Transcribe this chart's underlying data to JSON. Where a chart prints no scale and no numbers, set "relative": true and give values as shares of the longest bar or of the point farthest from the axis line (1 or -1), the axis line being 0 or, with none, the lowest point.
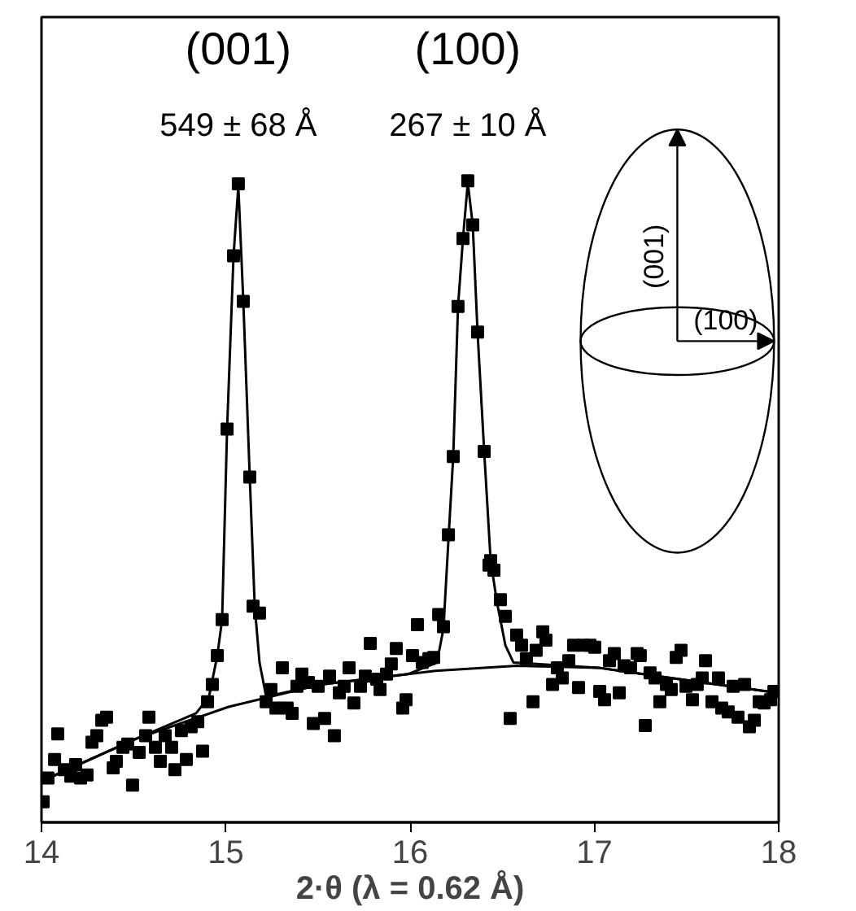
{
  "chart_data": {
    "type": "scatter",
    "relative": true,
    "xlabel": "2·θ (λ = 0.62 Å)",
    "xlim": [
      14,
      18
    ],
    "xticks": [
      14,
      15,
      16,
      17,
      18
    ],
    "grid": false,
    "annotations": [
      "(001)",
      "549 ± 68 Å",
      "(100)",
      "267 ± 10 Å",
      "(001)",
      "(100)"
    ],
    "series": [
      {
        "marker": "square",
        "color": "#000000",
        "x": [
          14.009,
          14.035,
          14.071,
          14.088,
          14.124,
          14.159,
          14.185,
          14.212,
          14.247,
          14.274,
          14.3,
          14.327,
          14.353,
          14.389,
          14.406,
          14.442,
          14.468,
          14.494,
          14.53,
          14.565,
          14.583,
          14.618,
          14.645,
          14.671,
          14.706,
          14.724,
          14.759,
          14.786,
          14.812,
          14.848,
          14.874,
          14.901,
          14.927,
          14.954,
          14.98,
          15.007,
          15.042,
          15.068,
          15.095,
          15.13,
          15.148,
          15.183,
          15.219,
          15.245,
          15.272,
          15.307,
          15.333,
          15.36,
          15.386,
          15.413,
          15.448,
          15.475,
          15.501,
          15.536,
          15.563,
          15.589,
          15.616,
          15.642,
          15.669,
          15.695,
          15.731,
          15.757,
          15.784,
          15.819,
          15.837,
          15.872,
          15.898,
          15.925,
          15.96,
          15.978,
          16.013,
          16.04,
          16.066,
          16.102,
          16.128,
          16.155,
          16.181,
          16.208,
          16.234,
          16.26,
          16.287,
          16.313,
          16.34,
          16.366,
          16.402,
          16.437,
          16.428,
          16.455,
          16.49,
          16.517,
          16.543,
          16.578,
          16.605,
          16.631,
          16.667,
          16.684,
          16.72,
          16.737,
          16.773,
          16.799,
          16.826,
          16.861,
          16.887,
          16.914,
          16.94,
          16.976,
          17.002,
          17.029,
          17.055,
          17.082,
          17.108,
          17.135,
          17.161,
          17.196,
          17.232,
          17.249,
          17.276,
          17.302,
          17.329,
          17.355,
          17.391,
          17.417,
          17.444,
          17.47,
          17.497,
          17.532,
          17.558,
          17.585,
          17.603,
          17.638,
          17.673,
          17.691,
          17.726,
          17.753,
          17.779,
          17.815,
          17.841,
          17.868,
          17.894,
          17.921,
          17.956,
          17.974
        ],
        "values": [
          0.032,
          0.069,
          0.098,
          0.138,
          0.082,
          0.072,
          0.09,
          0.069,
          0.074,
          0.125,
          0.135,
          0.159,
          0.164,
          0.085,
          0.095,
          0.117,
          0.122,
          0.058,
          0.109,
          0.135,
          0.164,
          0.117,
          0.095,
          0.135,
          0.117,
          0.082,
          0.143,
          0.098,
          0.149,
          0.157,
          0.111,
          0.188,
          0.215,
          0.26,
          0.316,
          0.613,
          0.883,
          0.995,
          0.812,
          0.538,
          0.337,
          0.326,
          0.188,
          0.207,
          0.178,
          0.241,
          0.178,
          0.17,
          0.212,
          0.231,
          0.218,
          0.154,
          0.212,
          0.162,
          0.228,
          0.135,
          0.202,
          0.212,
          0.241,
          0.186,
          0.212,
          0.228,
          0.279,
          0.223,
          0.207,
          0.231,
          0.247,
          0.271,
          0.178,
          0.191,
          0.26,
          0.308,
          0.249,
          0.255,
          0.257,
          0.324,
          0.305,
          0.448,
          0.57,
          0.804,
          0.91,
          1.0,
          0.931,
          0.764,
          0.578,
          0.408,
          0.401,
          0.393,
          0.347,
          0.321,
          0.162,
          0.292,
          0.276,
          0.255,
          0.188,
          0.268,
          0.297,
          0.284,
          0.215,
          0.241,
          0.225,
          0.252,
          0.276,
          0.21,
          0.276,
          0.276,
          0.273,
          0.204,
          0.191,
          0.252,
          0.263,
          0.202,
          0.244,
          0.241,
          0.263,
          0.26,
          0.151,
          0.233,
          0.225,
          0.188,
          0.215,
          0.207,
          0.257,
          0.268,
          0.212,
          0.191,
          0.215,
          0.225,
          0.252,
          0.188,
          0.225,
          0.178,
          0.172,
          0.212,
          0.164,
          0.215,
          0.149,
          0.159,
          0.188,
          0.186,
          0.191,
          0.204
        ]
      },
      {
        "type": "line",
        "marker": "none",
        "color": "#000000",
        "x": [
          14.0,
          14.512,
          15.015,
          15.519,
          16.137,
          16.578,
          17.02,
          17.461,
          17.991
        ],
        "values": [
          0.064,
          0.13,
          0.18,
          0.215,
          0.236,
          0.244,
          0.241,
          0.223,
          0.202
        ]
      },
      {
        "type": "line",
        "marker": "none",
        "color": "#000000",
        "x": [
          14.0,
          14.512,
          14.839,
          14.909,
          14.954,
          14.98,
          15.007,
          15.042,
          15.068,
          15.095,
          15.13,
          15.157,
          15.183,
          15.219,
          15.519,
          15.987,
          16.146,
          16.181,
          16.208,
          16.234,
          16.26,
          16.287,
          16.313,
          16.34,
          16.366,
          16.402,
          16.437,
          16.472,
          16.517,
          16.561,
          17.02,
          17.461,
          17.991
        ],
        "values": [
          0.064,
          0.13,
          0.17,
          0.196,
          0.26,
          0.316,
          0.613,
          0.883,
          0.992,
          0.812,
          0.538,
          0.337,
          0.249,
          0.196,
          0.215,
          0.231,
          0.249,
          0.302,
          0.44,
          0.57,
          0.804,
          0.91,
          0.997,
          0.931,
          0.764,
          0.578,
          0.408,
          0.342,
          0.276,
          0.249,
          0.241,
          0.223,
          0.202
        ]
      }
    ]
  }
}
